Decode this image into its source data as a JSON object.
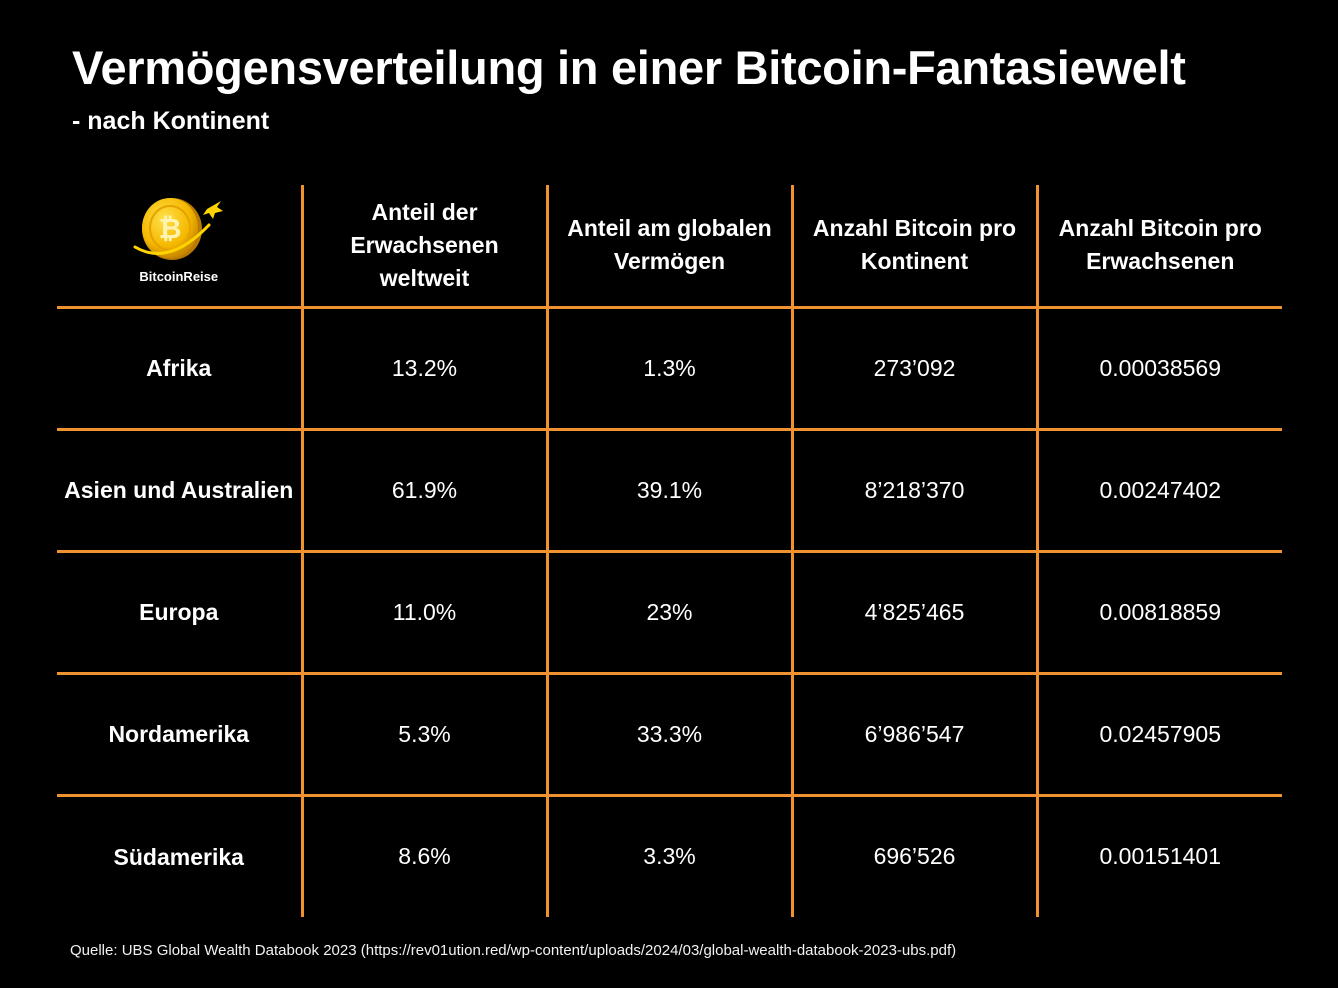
{
  "title": "Vermögensverteilung in einer Bitcoin-Fantasiewelt",
  "subtitle": "- nach Kontinent",
  "logo": {
    "text": "BitcoinReise",
    "icon": "bitcoin-coin-with-airplane-icon",
    "coin_color": "#f5b800",
    "symbol": "₿"
  },
  "accent_color": "#f0922f",
  "chart_data": {
    "type": "table",
    "columns": [
      "",
      "Anteil der Erwachsenen weltweit",
      "Anteil am globalen Vermögen",
      "Anzahl Bitcoin pro Kontinent",
      "Anzahl Bitcoin pro Erwachsenen"
    ],
    "rows": [
      {
        "label": "Afrika",
        "values": [
          "13.2%",
          "1.3%",
          "273’092",
          "0.00038569"
        ]
      },
      {
        "label": "Asien und Australien",
        "values": [
          "61.9%",
          "39.1%",
          "8’218’370",
          "0.00247402"
        ]
      },
      {
        "label": "Europa",
        "values": [
          "11.0%",
          "23%",
          "4’825’465",
          "0.00818859"
        ]
      },
      {
        "label": "Nordamerika",
        "values": [
          "5.3%",
          "33.3%",
          "6’986’547",
          "0.02457905"
        ]
      },
      {
        "label": "Südamerika",
        "values": [
          "8.6%",
          "3.3%",
          "696’526",
          "0.00151401"
        ]
      }
    ]
  },
  "source": "Quelle: UBS Global Wealth Databook 2023 (https://rev01ution.red/wp-content/uploads/2024/03/global-wealth-databook-2023-ubs.pdf)"
}
